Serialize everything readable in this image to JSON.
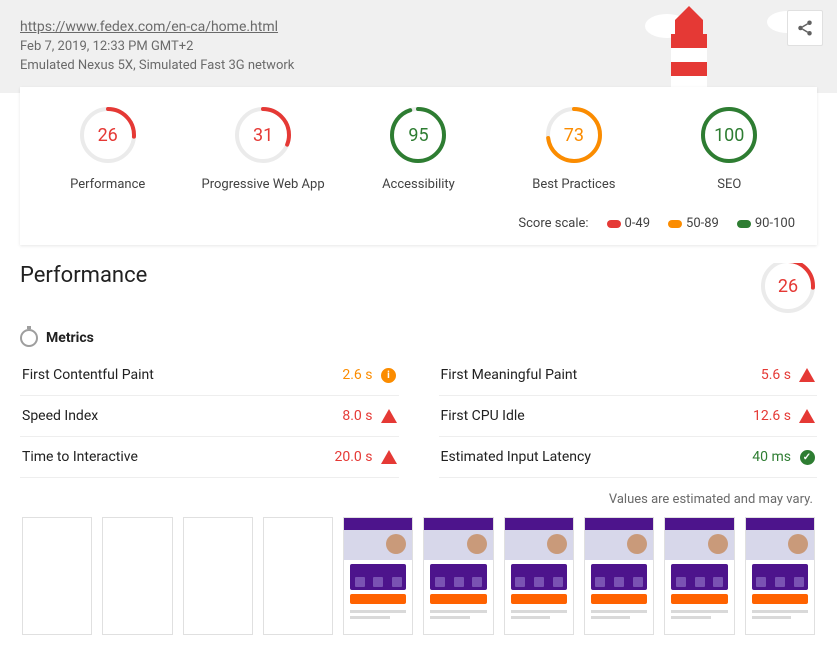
{
  "header": {
    "url": "https://www.fedex.com/en-ca/home.html",
    "date": "Feb 7, 2019, 12:33 PM GMT+2",
    "env": "Emulated Nexus 5X, Simulated Fast 3G network"
  },
  "colors": {
    "fail": "#e53935",
    "avg": "#fb8c00",
    "pass": "#2e7d32",
    "gauge_track": "#ebebeb",
    "header_bg": "#f0f0f0"
  },
  "scores": [
    {
      "label": "Performance",
      "value": 26,
      "status": "fail"
    },
    {
      "label": "Progressive Web App",
      "value": 31,
      "status": "fail"
    },
    {
      "label": "Accessibility",
      "value": 95,
      "status": "pass"
    },
    {
      "label": "Best Practices",
      "value": 73,
      "status": "avg"
    },
    {
      "label": "SEO",
      "value": 100,
      "status": "pass"
    }
  ],
  "scale": {
    "label": "Score scale:",
    "ranges": [
      {
        "text": "0-49",
        "status": "fail"
      },
      {
        "text": "50-89",
        "status": "avg"
      },
      {
        "text": "90-100",
        "status": "pass"
      }
    ]
  },
  "performance": {
    "title": "Performance",
    "score": 26,
    "score_status": "fail",
    "metrics_label": "Metrics",
    "metrics": [
      {
        "name": "First Contentful Paint",
        "value": "2.6 s",
        "status": "avg",
        "badge": "info"
      },
      {
        "name": "First Meaningful Paint",
        "value": "5.6 s",
        "status": "fail",
        "badge": "triangle"
      },
      {
        "name": "Speed Index",
        "value": "8.0 s",
        "status": "fail",
        "badge": "triangle"
      },
      {
        "name": "First CPU Idle",
        "value": "12.6 s",
        "status": "fail",
        "badge": "triangle"
      },
      {
        "name": "Time to Interactive",
        "value": "20.0 s",
        "status": "fail",
        "badge": "triangle"
      },
      {
        "name": "Estimated Input Latency",
        "value": "40 ms",
        "status": "pass",
        "badge": "check"
      }
    ],
    "note": "Values are estimated and may vary.",
    "filmstrip": {
      "frames": 10,
      "first_content_frame": 4,
      "frame_colors": {
        "topbar": "#4d148c",
        "panel": "#4d148c",
        "panel_item": "#7a52b3",
        "button": "#ff6200",
        "hero": "#d7d7ea",
        "face": "#c99a7a",
        "line": "#d9d9d9"
      }
    }
  }
}
